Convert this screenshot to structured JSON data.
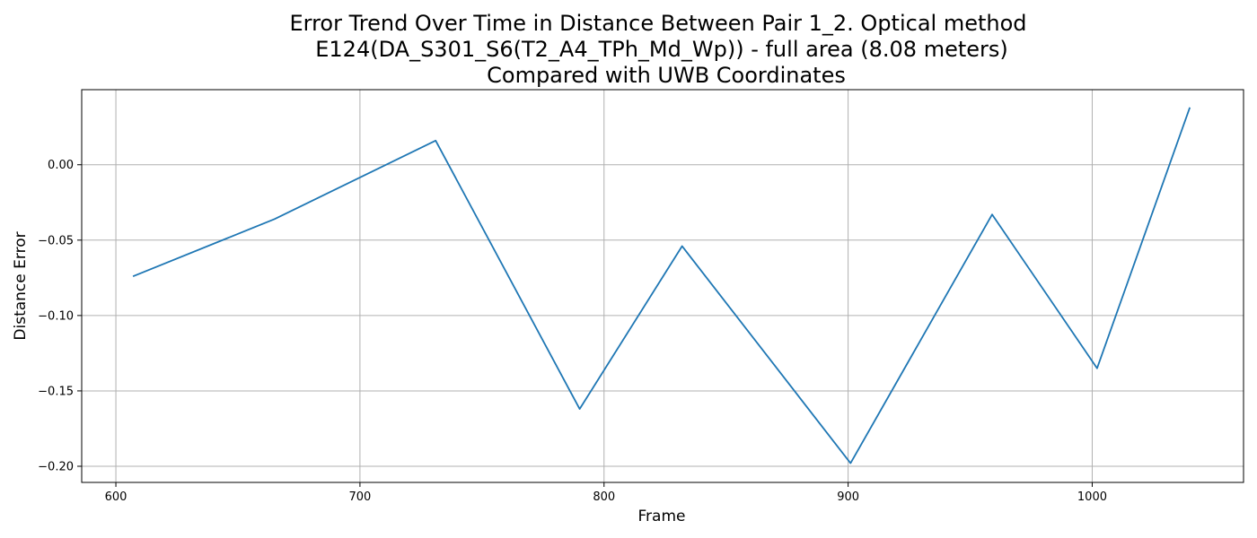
{
  "chart_data": {
    "type": "line",
    "title_lines": [
      "Error Trend Over Time in Distance Between Pair 1_2. Optical method",
      "E124(DA_S301_S6(T2_A4_TPh_Md_Wp)) - full area (8.08 meters)",
      "Compared with UWB Coordinates"
    ],
    "xlabel": "Frame",
    "ylabel": "Distance Error",
    "xlim": [
      586,
      1062
    ],
    "ylim": [
      -0.2107,
      0.0498
    ],
    "x_ticks": [
      600,
      700,
      800,
      900,
      1000
    ],
    "x_tick_labels": [
      "600",
      "700",
      "800",
      "900",
      "1000"
    ],
    "y_ticks": [
      0.0,
      -0.05,
      -0.1,
      -0.15,
      -0.2
    ],
    "y_tick_labels": [
      "0.00",
      "−0.05",
      "−0.10",
      "−0.15",
      "−0.20"
    ],
    "grid": true,
    "series": [
      {
        "color": "#1f77b4",
        "x": [
          607,
          665,
          731,
          790,
          832,
          901,
          959,
          1002,
          1040
        ],
        "y": [
          -0.074,
          -0.036,
          0.016,
          -0.162,
          -0.054,
          -0.198,
          -0.033,
          -0.135,
          0.038
        ]
      }
    ]
  }
}
